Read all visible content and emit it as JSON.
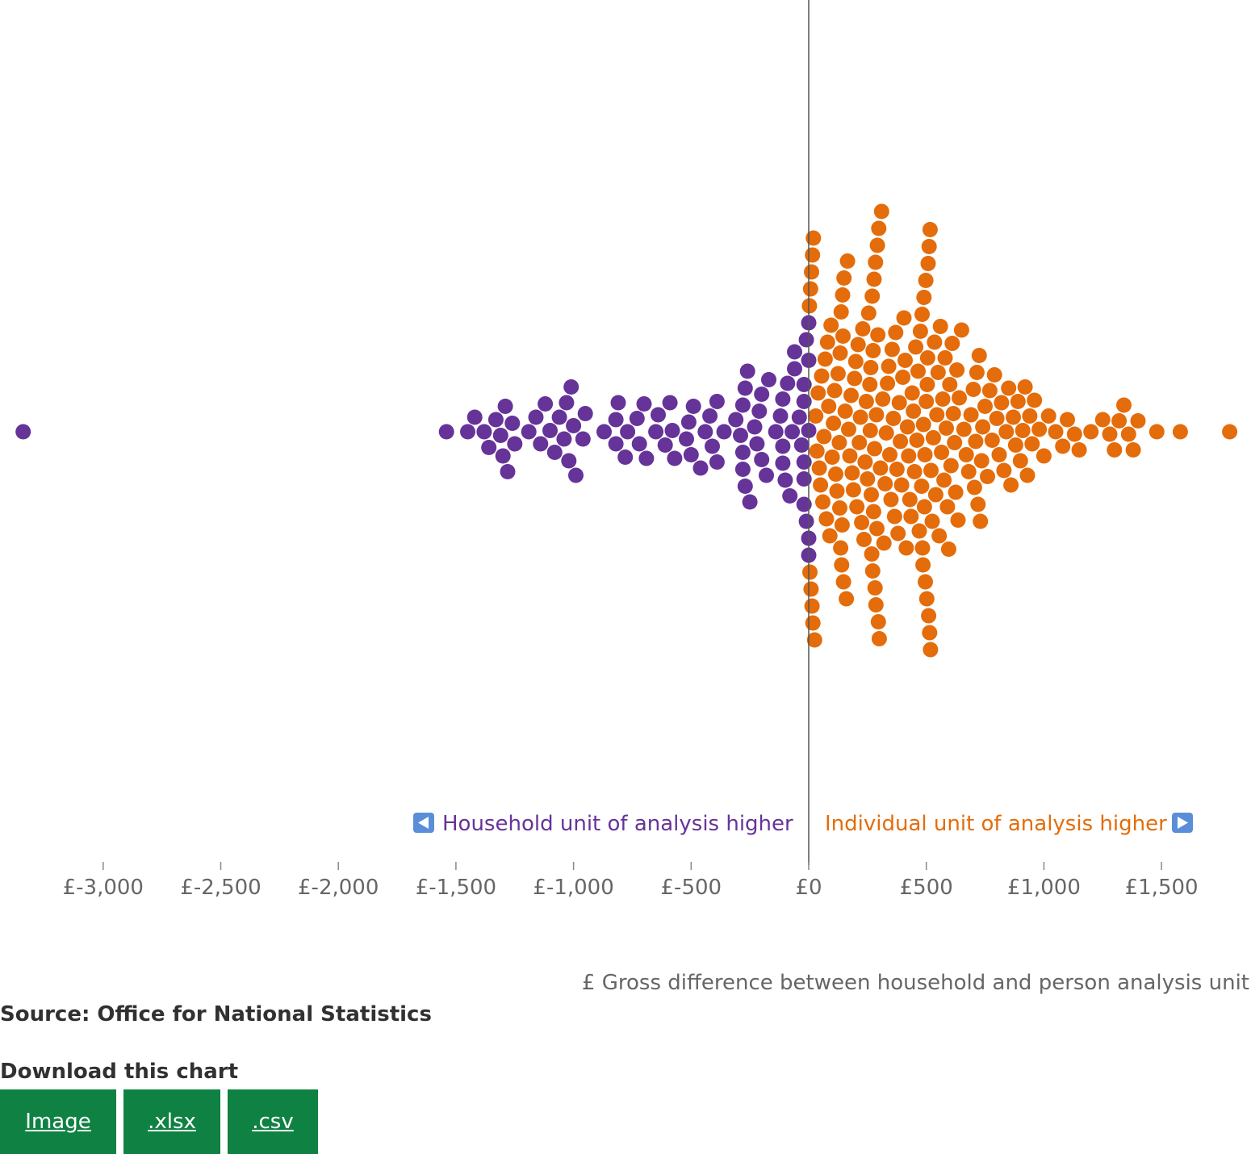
{
  "chart_data": {
    "type": "scatter",
    "layout": "beeswarm",
    "xlabel": "£ Gross difference between household and person analysis unit",
    "x_ticks": [
      "£-3,000",
      "£-2,500",
      "£-2,000",
      "£-1,500",
      "£-1,000",
      "£-500",
      "£0",
      "£500",
      "£1,000",
      "£1,500"
    ],
    "x_tick_values": [
      -3000,
      -2500,
      -2000,
      -1500,
      -1000,
      -500,
      0,
      500,
      1000,
      1500
    ],
    "xlim": [
      -3350,
      1850
    ],
    "reference_line": 0,
    "annotations": {
      "left": "Household unit of analysis higher",
      "right": "Individual unit of analysis higher"
    },
    "series": [
      {
        "key": "household",
        "color": "#663399",
        "values": [
          -3340,
          -1540,
          -1450,
          -1420,
          -1380,
          -1360,
          -1330,
          -1310,
          -1300,
          -1290,
          -1280,
          -1260,
          -1250,
          -1190,
          -1160,
          -1140,
          -1120,
          -1100,
          -1080,
          -1060,
          -1040,
          -1030,
          -1020,
          -1010,
          -1000,
          -990,
          -960,
          -950,
          -870,
          -820,
          -820,
          -810,
          -780,
          -770,
          -730,
          -720,
          -700,
          -690,
          -650,
          -640,
          -610,
          -590,
          -580,
          -570,
          -520,
          -510,
          -500,
          -490,
          -460,
          -440,
          -420,
          -410,
          -390,
          -390,
          -360,
          -310,
          -290,
          -280,
          -280,
          -280,
          -270,
          -270,
          -260,
          -250,
          -230,
          -220,
          -210,
          -200,
          -200,
          -180,
          -170,
          -140,
          -120,
          -110,
          -110,
          -110,
          -100,
          -90,
          -80,
          -70,
          -60,
          -60,
          -40,
          -30,
          -20,
          -20,
          -20,
          -20,
          -20,
          -10,
          -10,
          0,
          0,
          0,
          0,
          0
        ]
      },
      {
        "key": "individual",
        "color": "#e46c0a",
        "values": [
          3,
          5,
          8,
          10,
          12,
          14,
          16,
          18,
          20,
          25,
          30,
          35,
          40,
          45,
          50,
          55,
          60,
          65,
          70,
          75,
          80,
          85,
          90,
          95,
          100,
          105,
          110,
          115,
          120,
          125,
          130,
          132,
          134,
          136,
          138,
          140,
          142,
          144,
          146,
          148,
          150,
          155,
          160,
          165,
          170,
          175,
          180,
          185,
          190,
          195,
          200,
          205,
          210,
          215,
          220,
          225,
          230,
          235,
          240,
          245,
          250,
          255,
          260,
          262,
          264,
          266,
          268,
          270,
          272,
          274,
          276,
          278,
          280,
          282,
          284,
          286,
          288,
          290,
          292,
          294,
          296,
          298,
          300,
          305,
          310,
          315,
          320,
          325,
          330,
          335,
          340,
          345,
          350,
          355,
          360,
          365,
          370,
          375,
          380,
          385,
          390,
          395,
          400,
          405,
          410,
          415,
          420,
          425,
          430,
          435,
          440,
          445,
          450,
          455,
          460,
          465,
          470,
          475,
          480,
          482,
          484,
          486,
          488,
          490,
          492,
          494,
          496,
          498,
          500,
          502,
          504,
          506,
          508,
          510,
          512,
          514,
          516,
          518,
          520,
          525,
          530,
          535,
          540,
          545,
          550,
          555,
          560,
          565,
          570,
          575,
          580,
          585,
          590,
          595,
          600,
          605,
          610,
          615,
          620,
          625,
          630,
          635,
          640,
          650,
          660,
          670,
          680,
          690,
          700,
          705,
          710,
          715,
          720,
          725,
          730,
          735,
          740,
          750,
          760,
          770,
          780,
          790,
          800,
          810,
          820,
          830,
          840,
          850,
          860,
          870,
          880,
          890,
          900,
          910,
          920,
          930,
          940,
          950,
          960,
          980,
          1000,
          1020,
          1050,
          1080,
          1100,
          1130,
          1150,
          1200,
          1250,
          1280,
          1300,
          1320,
          1340,
          1360,
          1380,
          1400,
          1480,
          1580,
          1790
        ]
      }
    ]
  },
  "source": "Source: Office for National Statistics",
  "download": {
    "heading": "Download this chart",
    "buttons": [
      ".xlsx",
      ".csv"
    ],
    "first_button": "Image"
  },
  "colors": {
    "household": "#663399",
    "individual": "#e46c0a",
    "button": "#0f8243",
    "axis_text": "#666666",
    "zero_line": "#555555"
  }
}
